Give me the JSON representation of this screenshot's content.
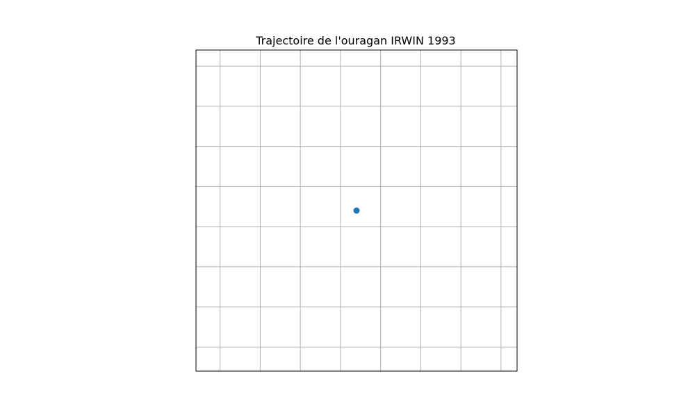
{
  "chart_data": {
    "type": "scatter",
    "title": "Trajectoire de l'ouragan IRWIN 1993",
    "xlabel": "",
    "ylabel": "",
    "xlim": [
      -4,
      4
    ],
    "ylim": [
      -4,
      4
    ],
    "grid": true,
    "axis_labels_visible": false,
    "gridlines_x": [
      -3.4,
      -2.4,
      -1.4,
      -0.4,
      0.6,
      1.6,
      2.6,
      3.6
    ],
    "gridlines_y": [
      -3.4,
      -2.4,
      -1.4,
      -0.4,
      0.6,
      1.6,
      2.6,
      3.6
    ],
    "series": [
      {
        "points": [
          {
            "x": 0,
            "y": 0
          }
        ]
      }
    ],
    "colors": {
      "point": "#1f77b4",
      "grid": "#b0b0b0",
      "frame": "#000000"
    }
  }
}
